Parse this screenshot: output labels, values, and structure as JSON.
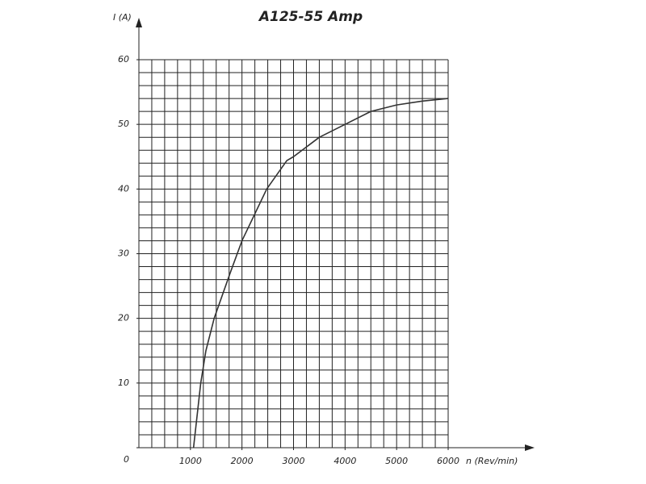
{
  "chart_data": {
    "type": "line",
    "title": "A125-55 Amp",
    "x_label": "n (Rev/min)",
    "y_label": "I (A)",
    "series": [
      {
        "name": "A125-55",
        "color": "#333333",
        "x": [
          1060,
          1200,
          1300,
          1460,
          1770,
          2000,
          2480,
          2870,
          3000,
          3500,
          4000,
          4500,
          5000,
          5500,
          6000
        ],
        "values": [
          0,
          10,
          15,
          20,
          27,
          32,
          40,
          44.4,
          45,
          48,
          50,
          52,
          53,
          53.6,
          54
        ]
      }
    ],
    "xlim": [
      0,
      6000
    ],
    "ylim": [
      0,
      60
    ],
    "xticks": [
      1000,
      2000,
      3000,
      4000,
      5000,
      6000
    ],
    "yticks": [
      0,
      10,
      20,
      30,
      40,
      50,
      60
    ],
    "grid": true,
    "xgrid": [
      0,
      250,
      500,
      750,
      1000,
      1250,
      1500,
      1750,
      2000,
      2250,
      2500,
      2750,
      3000,
      3250,
      3500,
      3750,
      4000,
      4250,
      4500,
      4750,
      5000,
      5250,
      5500,
      5750,
      6000
    ],
    "ygrid": [
      0,
      2,
      4,
      6,
      8,
      10,
      12,
      14,
      16,
      18,
      20,
      22,
      24,
      26,
      28,
      30,
      32,
      34,
      36,
      38,
      40,
      42,
      44,
      46,
      48,
      50,
      52,
      54,
      56,
      58,
      60
    ]
  }
}
